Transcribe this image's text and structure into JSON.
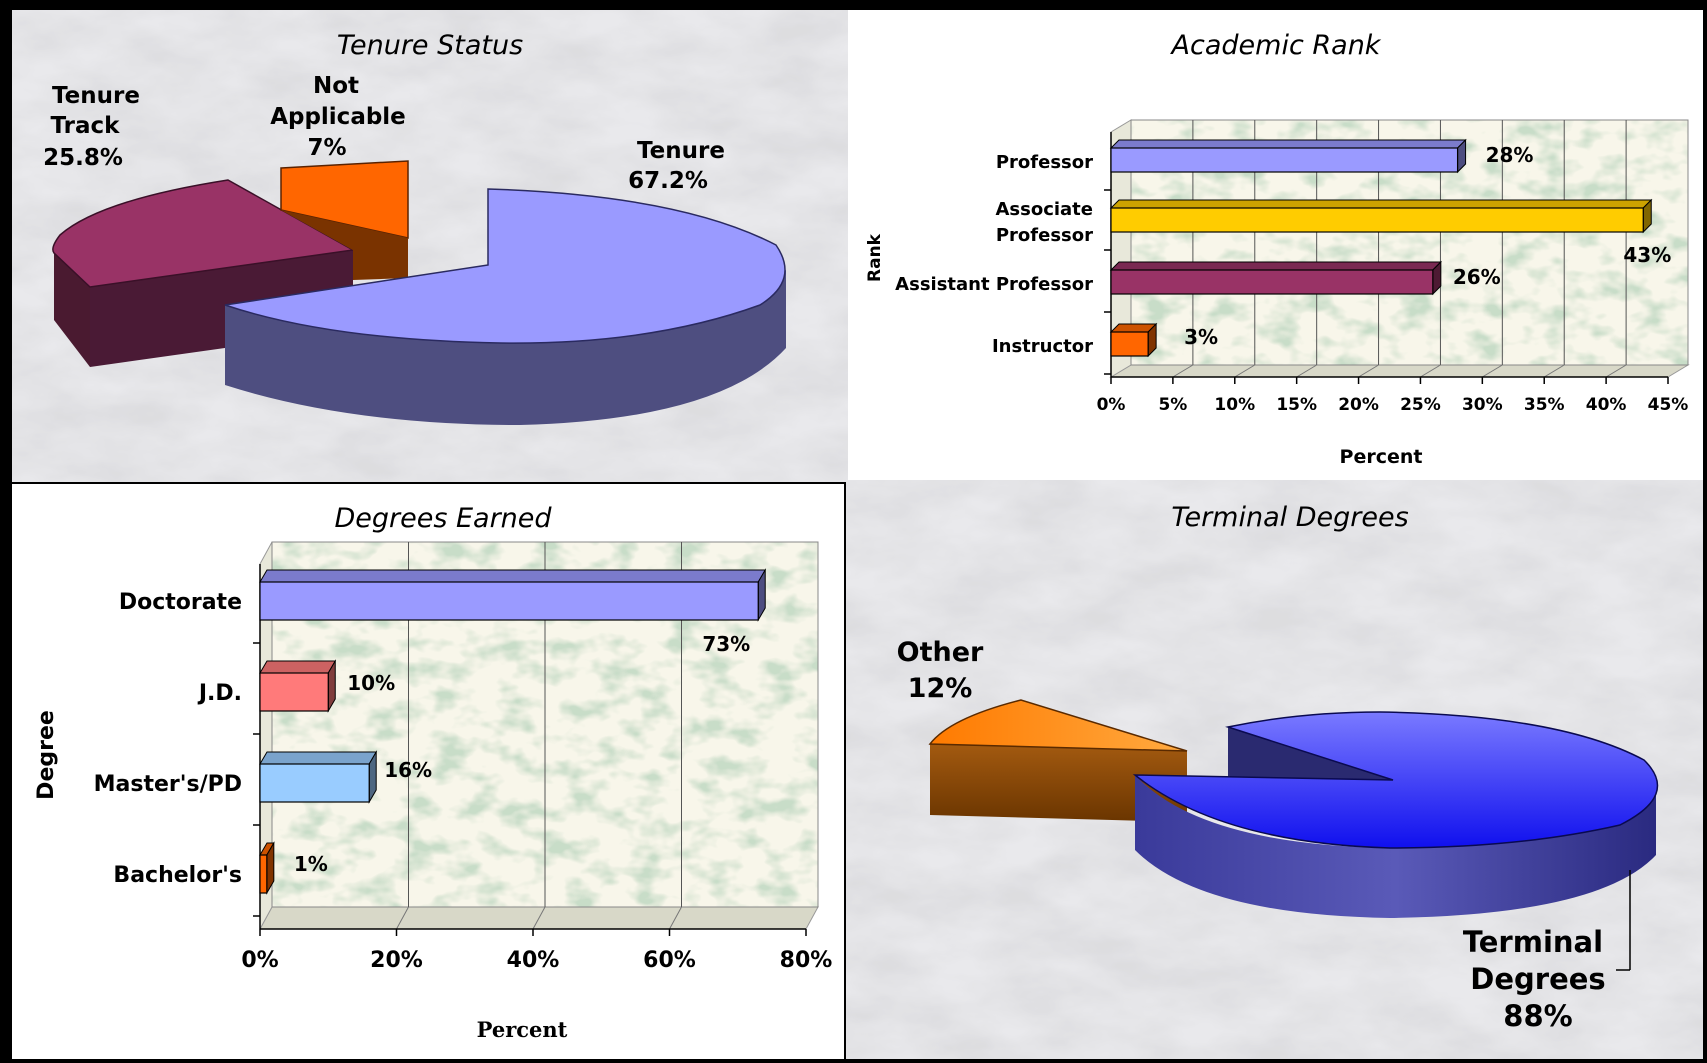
{
  "chart_data": [
    {
      "type": "pie",
      "title": "Tenure Status",
      "slices": [
        {
          "label": "Tenure",
          "value": 67.2,
          "display": "67.2%",
          "color": "#9a9aff"
        },
        {
          "label": "Tenure Track",
          "value": 25.8,
          "display": "25.8%",
          "color": "#993366"
        },
        {
          "label": "Not Applicable",
          "value": 7,
          "display": "7%",
          "color": "#ff6600"
        }
      ]
    },
    {
      "type": "bar",
      "orientation": "horizontal",
      "title": "Academic Rank",
      "xlabel": "Percent",
      "ylabel": "Rank",
      "xlim": [
        0,
        45
      ],
      "xticks": [
        "0%",
        "5%",
        "10%",
        "15%",
        "20%",
        "25%",
        "30%",
        "35%",
        "40%",
        "45%"
      ],
      "categories": [
        "Professor",
        "Associate Professor",
        "Assistant Professor",
        "Instructor"
      ],
      "values": [
        28,
        43,
        26,
        3
      ],
      "labels": [
        "28%",
        "43%",
        "26%",
        "3%"
      ],
      "colors": [
        "#9a9aff",
        "#ffcc00",
        "#993366",
        "#ff6600"
      ]
    },
    {
      "type": "bar",
      "orientation": "horizontal",
      "title": "Degrees Earned",
      "xlabel": "Percent",
      "ylabel": "Degree",
      "xlim": [
        0,
        80
      ],
      "xticks": [
        "0%",
        "20%",
        "40%",
        "60%",
        "80%"
      ],
      "categories": [
        "Doctorate",
        "J.D.",
        "Master's/PD",
        "Bachelor's"
      ],
      "values": [
        73,
        10,
        16,
        1
      ],
      "labels": [
        "73%",
        "10%",
        "16%",
        "1%"
      ],
      "colors": [
        "#9a9aff",
        "#ff7a7a",
        "#99ccff",
        "#ff6600"
      ]
    },
    {
      "type": "pie",
      "title": "Terminal Degrees",
      "slices": [
        {
          "label": "Terminal Degrees",
          "value": 88,
          "display": "88%",
          "color": "#2a2aff"
        },
        {
          "label": "Other",
          "value": 12,
          "display": "12%",
          "color": "#ff8800"
        }
      ]
    }
  ]
}
